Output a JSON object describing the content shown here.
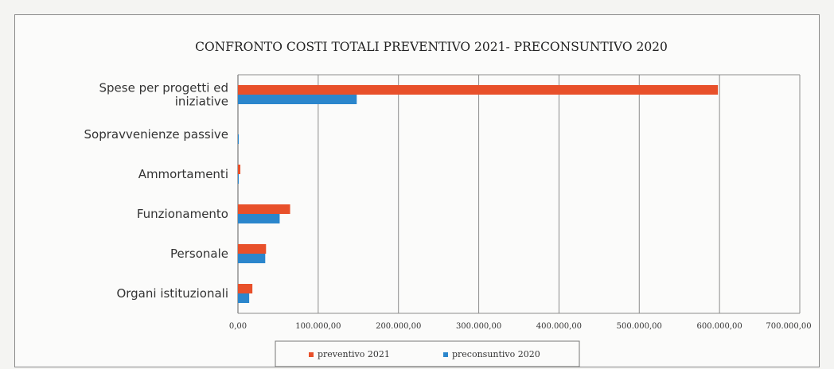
{
  "chart_data": {
    "type": "bar",
    "orientation": "horizontal",
    "title": "CONFRONTO COSTI TOTALI PREVENTIVO 2021- PRECONSUNTIVO 2020",
    "categories": [
      "Spese per progetti ed iniziative",
      "Sopravvenienze passive",
      "Ammortamenti",
      "Funzionamento",
      "Personale",
      "Organi istituzionali"
    ],
    "category_lines": [
      [
        "Spese per progetti ed",
        "iniziative"
      ],
      [
        "Sopravvenienze passive"
      ],
      [
        "Ammortamenti"
      ],
      [
        "Funzionamento"
      ],
      [
        "Personale"
      ],
      [
        "Organi istituzionali"
      ]
    ],
    "series": [
      {
        "name": "preventivo 2021",
        "color": "#e8502a",
        "values": [
          598000,
          0,
          3000,
          65000,
          35000,
          18000
        ]
      },
      {
        "name": "preconsuntivo 2020",
        "color": "#2b86cc",
        "values": [
          148000,
          1000,
          1000,
          52000,
          34000,
          14000
        ]
      }
    ],
    "xlim": [
      0,
      700000
    ],
    "xticks": [
      "0,00",
      "100.000,00",
      "200.000,00",
      "300.000,00",
      "400.000,00",
      "500.000,00",
      "600.000,00",
      "700.000,00"
    ],
    "xlabel": "",
    "ylabel": "",
    "grid": "vertical",
    "legend": "bottom"
  }
}
